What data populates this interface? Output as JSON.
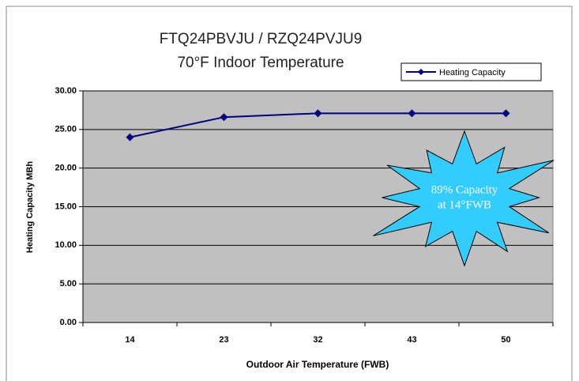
{
  "chart_data": {
    "type": "line",
    "title": [
      "FTQ24PBVJU / RZQ24PVJU9",
      "70°F Indoor Temperature"
    ],
    "x_label": "Outdoor Air Temperature (FWB)",
    "y_label": "Heating Capacity MBh",
    "categories": [
      "14",
      "23",
      "32",
      "43",
      "50"
    ],
    "series": [
      {
        "name": "Heating Capacity",
        "color": "#000080",
        "values": [
          24.0,
          26.6,
          27.1,
          27.1,
          27.1
        ]
      }
    ],
    "ylim": [
      0,
      30
    ],
    "yticks": [
      {
        "value": 0,
        "label": "0.00"
      },
      {
        "value": 5,
        "label": "5.00"
      },
      {
        "value": 10,
        "label": "10.00"
      },
      {
        "value": 15,
        "label": "15.00"
      },
      {
        "value": 20,
        "label": "20.00"
      },
      {
        "value": 25,
        "label": "25.00"
      },
      {
        "value": 30,
        "label": "30.00"
      }
    ],
    "grid": true,
    "legend": "top-right",
    "annotation": [
      "89% Capacity",
      "at 14°FWB"
    ]
  }
}
